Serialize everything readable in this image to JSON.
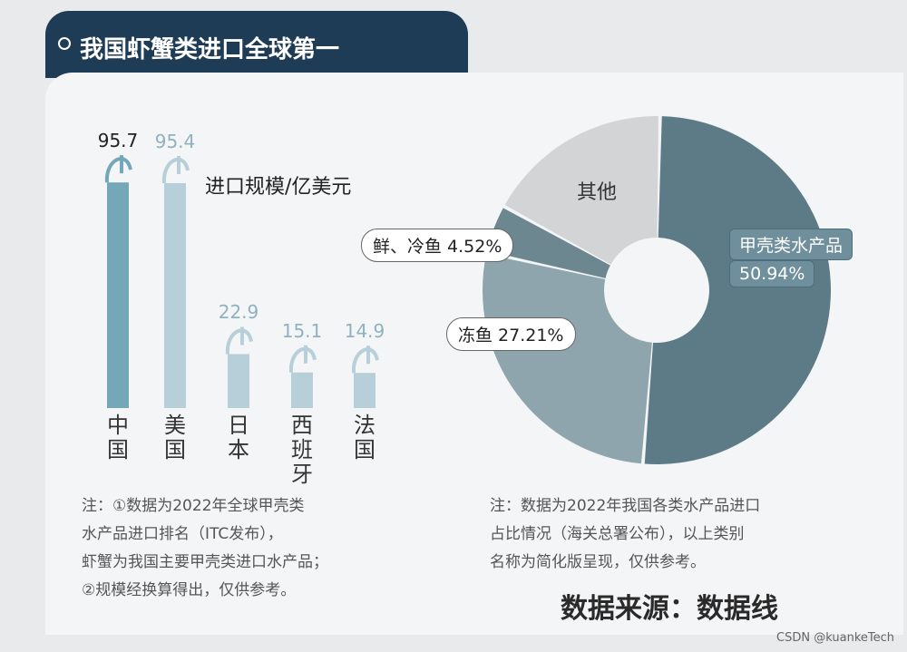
{
  "header": {
    "title": "我国虾蟹类进口全球第一"
  },
  "chart_data": [
    {
      "type": "bar",
      "title": "",
      "ylabel": "进口规模/亿美元",
      "categories": [
        "中国",
        "美国",
        "日本",
        "西班牙",
        "法国"
      ],
      "values": [
        95.7,
        95.4,
        22.9,
        15.1,
        14.9
      ],
      "value_labels": [
        "95.7",
        "95.4",
        "22.9",
        "15.1",
        "14.9"
      ],
      "ylim": [
        0,
        100
      ],
      "colors": [
        "#74a7b8",
        "#b6cfd9",
        "#b6cfd9",
        "#b6cfd9",
        "#b6cfd9"
      ]
    },
    {
      "type": "pie",
      "donut": true,
      "slices": [
        {
          "label": "甲壳类水产品",
          "value": 50.94,
          "value_label": "50.94%",
          "color": "#5c7b86"
        },
        {
          "label": "冻鱼",
          "value": 27.21,
          "value_label": "27.21%",
          "color": "#8ea5ae"
        },
        {
          "label": "鲜、冷鱼",
          "value": 4.52,
          "value_label": "4.52%",
          "color": "#6d8791"
        },
        {
          "label": "其他",
          "value": 17.33,
          "value_label": "",
          "color": "#d3d4d6"
        }
      ]
    }
  ],
  "notes": {
    "left": "注：①数据为2022年全球甲壳类\n水产品进口排名（ITC发布），\n虾蟹为我国主要甲壳类进口水产品；\n②规模经换算得出，仅供参考。",
    "right": "注：数据为2022年我国各类水产品进口\n占比情况（海关总署公布），以上类别\n名称为简化版呈现，仅供参考。"
  },
  "source": "数据来源：数据线",
  "watermark": "CSDN @kuankeTech",
  "callouts": {
    "fresh": "鲜、冷鱼 4.52%",
    "frozen": "冻鱼  27.21%",
    "crust_name": "甲壳类水产品",
    "crust_val": "50.94%",
    "other": "其他"
  }
}
